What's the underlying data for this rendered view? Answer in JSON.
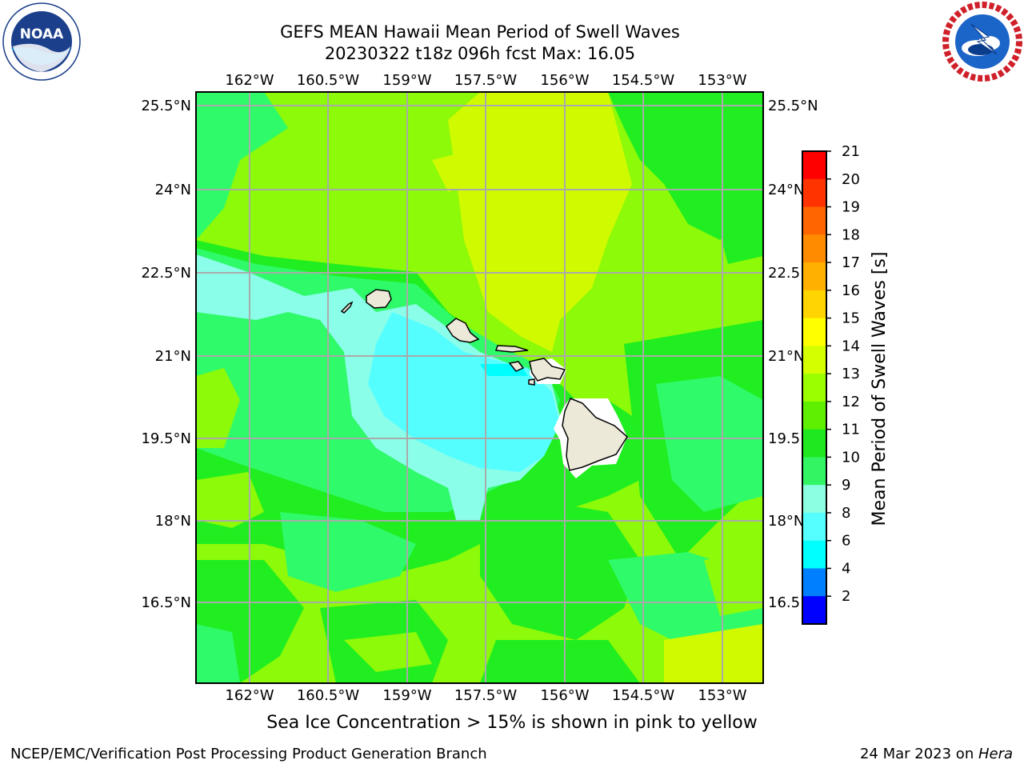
{
  "title": {
    "line1": "GEFS MEAN Hawaii Mean Period of Swell Waves",
    "line2": "20230322 t18z 096h fcst   Max: 16.05"
  },
  "logos": {
    "left": {
      "icon": "noaa-logo",
      "text": "NOAA",
      "ring_text": "NATIONAL OCEANIC AND ATMOSPHERIC ADMINISTRATION · U.S. DEPARTMENT OF COMMERCE"
    },
    "right": {
      "icon": "nws-logo",
      "ring_text": "NATIONAL WEATHER SERVICE"
    }
  },
  "map": {
    "lon_labels": [
      "162°W",
      "160.5°W",
      "159°W",
      "157.5°W",
      "156°W",
      "154.5°W",
      "153°W"
    ],
    "lat_labels": [
      "25.5°N",
      "24°N",
      "22.5°N",
      "21°N",
      "19.5°N",
      "18°N",
      "16.5°N"
    ],
    "field_colors": {
      "cyan": "#55fefe",
      "pale_cyan": "#8bfee9",
      "green_light": "#2ffa69",
      "green": "#20ee20",
      "yellow_green": "#8cfa08",
      "yellow": "#d0fa00",
      "land": "#ece9d8"
    }
  },
  "colorbar": {
    "label": "Mean Period of Swell Waves [s]",
    "ticks": [
      "21",
      "20",
      "19",
      "18",
      "17",
      "16",
      "15",
      "14",
      "13",
      "12",
      "11",
      "10",
      "9",
      "8",
      "6",
      "4",
      "2"
    ],
    "colors": [
      "#ff0000",
      "#ff3300",
      "#ff6600",
      "#ff8c00",
      "#ffb000",
      "#ffd400",
      "#ffff00",
      "#d4ff00",
      "#9cff00",
      "#5ef000",
      "#20e820",
      "#32f564",
      "#8cffe0",
      "#55ffff",
      "#00ffff",
      "#0080ff",
      "#0000ff"
    ]
  },
  "footer": {
    "caption": "Sea Ice Concentration > 15% is shown in pink to yellow",
    "credit": "NCEP/EMC/Verification Post Processing Product Generation Branch",
    "date": "24 Mar 2023 on ",
    "host": "Hera"
  }
}
